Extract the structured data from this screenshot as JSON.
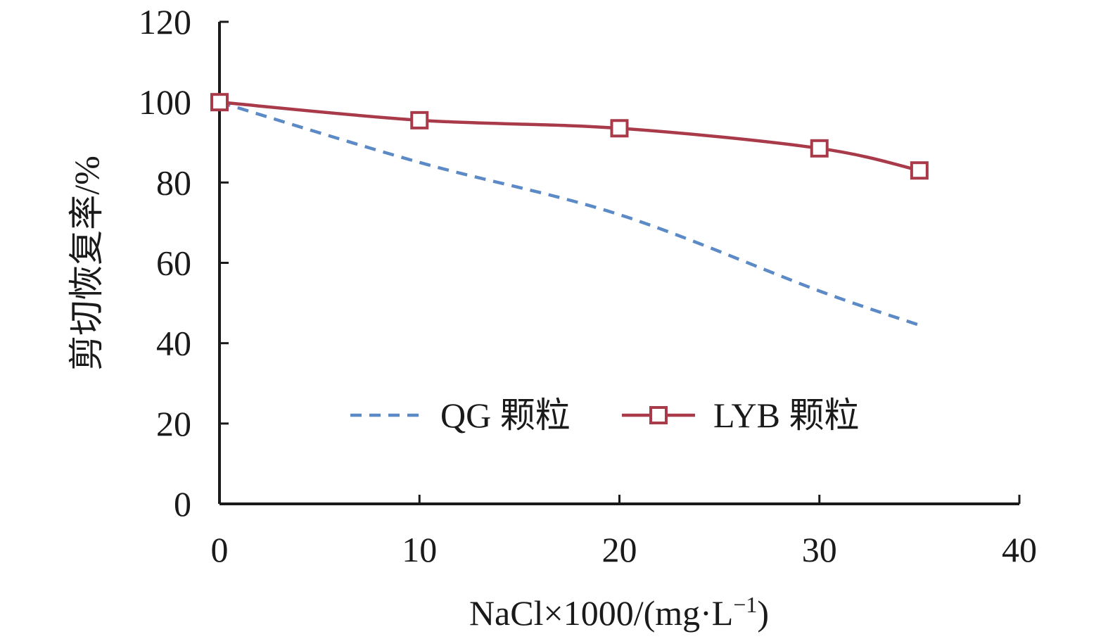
{
  "chart_data": {
    "type": "line",
    "title": "",
    "xlabel": "NaCl×1000/(mg·L",
    "xlabel_sup": "−1",
    "xlabel_tail": ")",
    "ylabel": "剪切恢复率/%",
    "xlim": [
      0,
      40
    ],
    "ylim": [
      0,
      120
    ],
    "xticks": [
      0,
      10,
      20,
      30,
      40
    ],
    "yticks": [
      0,
      20,
      40,
      60,
      80,
      100,
      120
    ],
    "grid": false,
    "legend_position": "bottom-center",
    "series": [
      {
        "name": "QG 颗粒",
        "style": "dashed",
        "marker": "none",
        "color": "#5b8ac6",
        "x": [
          0,
          10,
          20,
          30,
          35
        ],
        "y": [
          100,
          85,
          72,
          53,
          44.5
        ]
      },
      {
        "name": "LYB 颗粒",
        "style": "solid",
        "marker": "square",
        "color": "#a83a4a",
        "x": [
          0,
          10,
          20,
          30,
          35
        ],
        "y": [
          100,
          95.5,
          93.5,
          88.5,
          83
        ]
      }
    ]
  }
}
